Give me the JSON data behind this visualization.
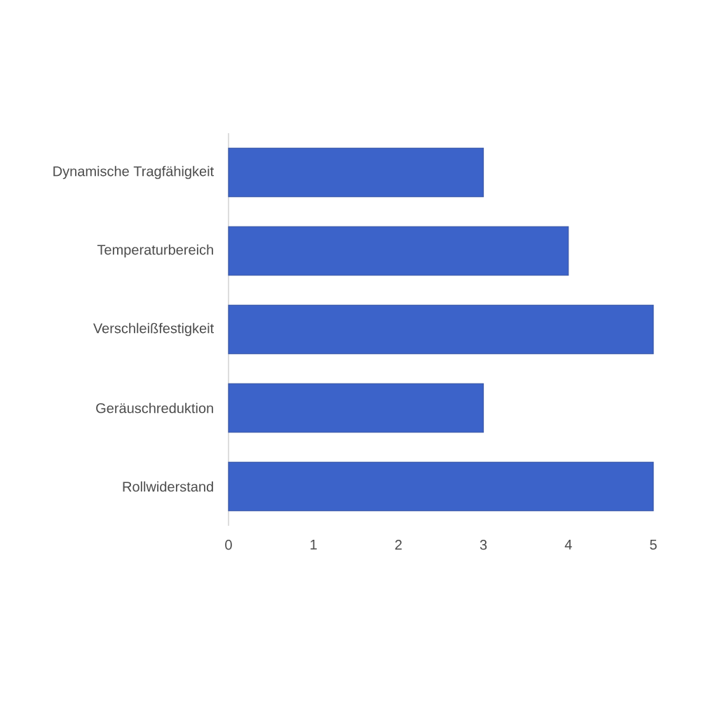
{
  "chart_data": {
    "type": "bar",
    "orientation": "horizontal",
    "categories": [
      "Dynamische Tragfähigkeit",
      "Temperaturbereich",
      "Verschleißfestigkeit",
      "Geräuschreduktion",
      "Rollwiderstand"
    ],
    "values": [
      3,
      4,
      5,
      3,
      5
    ],
    "color": "#3c63c9",
    "xlim": [
      0,
      5
    ],
    "xticks": [
      0,
      1,
      2,
      3,
      4,
      5
    ]
  }
}
